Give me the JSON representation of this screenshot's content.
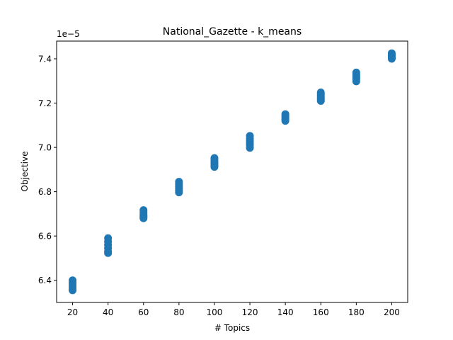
{
  "chart_data": {
    "type": "scatter",
    "title": "National_Gazette - k_means",
    "xlabel": "# Topics",
    "ylabel": "Objective",
    "y_offset_label": "1e−5",
    "x_ticks": [
      20,
      40,
      60,
      80,
      100,
      120,
      140,
      160,
      180,
      200
    ],
    "y_ticks": [
      6.4,
      6.6,
      6.8,
      7.0,
      7.2,
      7.4
    ],
    "y_tick_labels": [
      "6.4",
      "6.6",
      "6.8",
      "7.0",
      "7.2",
      "7.4"
    ],
    "xlim": [
      11,
      209
    ],
    "ylim": [
      6.3,
      7.48
    ],
    "grid": false,
    "marker_color": "#1f77b4",
    "series": [
      {
        "points": [
          [
            20,
            6.4
          ],
          [
            20,
            6.39
          ],
          [
            20,
            6.38
          ],
          [
            20,
            6.37
          ],
          [
            20,
            6.36
          ],
          [
            20,
            6.355
          ],
          [
            40,
            6.59
          ],
          [
            40,
            6.575
          ],
          [
            40,
            6.56
          ],
          [
            40,
            6.545
          ],
          [
            40,
            6.53
          ],
          [
            40,
            6.523
          ],
          [
            60,
            6.717
          ],
          [
            60,
            6.707
          ],
          [
            60,
            6.697
          ],
          [
            60,
            6.69
          ],
          [
            60,
            6.685
          ],
          [
            60,
            6.68
          ],
          [
            80,
            6.845
          ],
          [
            80,
            6.835
          ],
          [
            80,
            6.825
          ],
          [
            80,
            6.815
          ],
          [
            80,
            6.805
          ],
          [
            80,
            6.797
          ],
          [
            100,
            6.952
          ],
          [
            100,
            6.942
          ],
          [
            100,
            6.932
          ],
          [
            100,
            6.925
          ],
          [
            100,
            6.918
          ],
          [
            100,
            6.912
          ],
          [
            120,
            7.052
          ],
          [
            120,
            7.04
          ],
          [
            120,
            7.03
          ],
          [
            120,
            7.02
          ],
          [
            120,
            7.01
          ],
          [
            120,
            6.998
          ],
          [
            140,
            7.15
          ],
          [
            140,
            7.143
          ],
          [
            140,
            7.137
          ],
          [
            140,
            7.13
          ],
          [
            140,
            7.125
          ],
          [
            140,
            7.12
          ],
          [
            160,
            7.248
          ],
          [
            160,
            7.24
          ],
          [
            160,
            7.232
          ],
          [
            160,
            7.225
          ],
          [
            160,
            7.218
          ],
          [
            160,
            7.21
          ],
          [
            180,
            7.338
          ],
          [
            180,
            7.33
          ],
          [
            180,
            7.322
          ],
          [
            180,
            7.315
          ],
          [
            180,
            7.308
          ],
          [
            180,
            7.298
          ],
          [
            200,
            7.425
          ],
          [
            200,
            7.42
          ],
          [
            200,
            7.415
          ],
          [
            200,
            7.41
          ],
          [
            200,
            7.405
          ],
          [
            200,
            7.4
          ]
        ]
      }
    ]
  }
}
